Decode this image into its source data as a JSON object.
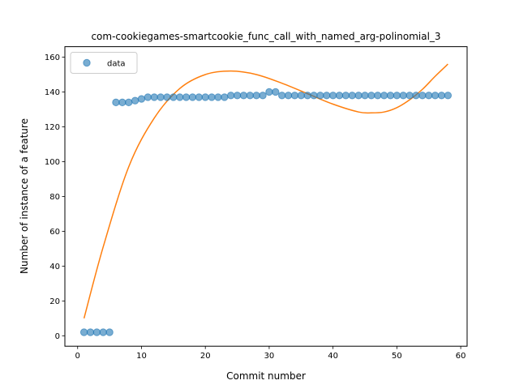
{
  "chart_data": {
    "type": "scatter",
    "title": "com-cookiegames-smartcookie_func_call_with_named_arg-polinomial_3",
    "xlabel": "Commit number",
    "ylabel": "Number of instance of a feature",
    "xlim": [
      -2,
      61
    ],
    "ylim": [
      -6,
      166
    ],
    "xticks": [
      0,
      10,
      20,
      30,
      40,
      50,
      60
    ],
    "yticks": [
      0,
      20,
      40,
      60,
      80,
      100,
      120,
      140,
      160
    ],
    "grid": false,
    "legend": {
      "position": "top-left",
      "entries": [
        "data"
      ]
    },
    "series": [
      {
        "name": "data",
        "kind": "scatter",
        "color": "#1f77b4",
        "x": [
          1,
          2,
          3,
          4,
          5,
          6,
          7,
          8,
          9,
          10,
          11,
          12,
          13,
          14,
          15,
          16,
          17,
          18,
          19,
          20,
          21,
          22,
          23,
          24,
          25,
          26,
          27,
          28,
          29,
          30,
          31,
          32,
          33,
          34,
          35,
          36,
          37,
          38,
          39,
          40,
          41,
          42,
          43,
          44,
          45,
          46,
          47,
          48,
          49,
          50,
          51,
          52,
          53,
          54,
          55,
          56,
          57,
          58
        ],
        "y": [
          2,
          2,
          2,
          2,
          2,
          134,
          134,
          134,
          135,
          136,
          137,
          137,
          137,
          137,
          137,
          137,
          137,
          137,
          137,
          137,
          137,
          137,
          137,
          138,
          138,
          138,
          138,
          138,
          138,
          140,
          140,
          138,
          138,
          138,
          138,
          138,
          138,
          138,
          138,
          138,
          138,
          138,
          138,
          138,
          138,
          138,
          138,
          138,
          138,
          138,
          138,
          138,
          138,
          138,
          138,
          138,
          138,
          138
        ]
      },
      {
        "kind": "line",
        "color": "#ff7f0e",
        "x": [
          1,
          4,
          8,
          12,
          16,
          20,
          24,
          28,
          32,
          36,
          40,
          44,
          46,
          48,
          50,
          52,
          54,
          56,
          58
        ],
        "y": [
          10,
          51,
          97,
          125,
          142,
          150,
          152,
          150,
          145,
          139,
          133,
          128.5,
          128,
          128.5,
          131,
          135.5,
          141.5,
          149,
          156
        ]
      }
    ]
  }
}
